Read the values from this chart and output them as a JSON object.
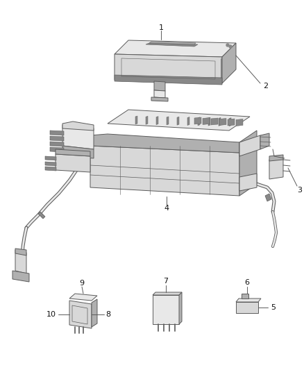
{
  "background": "#ffffff",
  "line_color": "#5a5a5a",
  "label_color": "#111111",
  "figsize": [
    4.38,
    5.33
  ],
  "dpi": 100,
  "lw": 0.7,
  "gray_fill": "#d8d8d8",
  "light_gray": "#e8e8e8",
  "mid_gray": "#b0b0b0",
  "dark_gray": "#888888"
}
